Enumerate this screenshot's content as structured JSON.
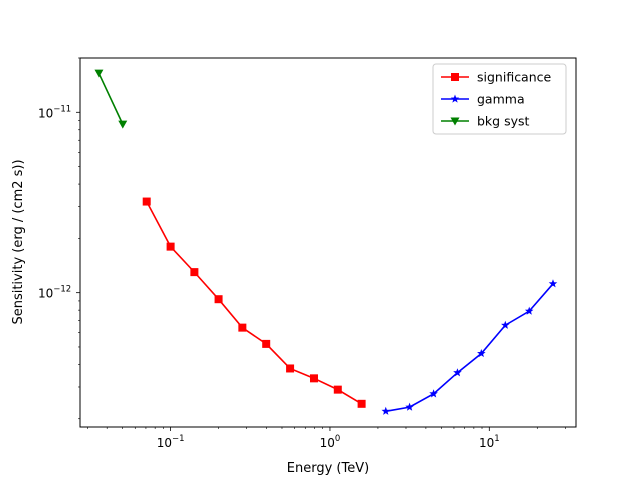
{
  "chart_data": {
    "type": "line",
    "title": "",
    "xlabel": "Energy (TeV)",
    "ylabel": "Sensitivity (erg / (cm2 s))",
    "xscale": "log",
    "yscale": "log",
    "xlim": [
      0.027,
      35
    ],
    "ylim": [
      1.8e-13,
      2e-11
    ],
    "x_ticks": [
      {
        "value": 0.1,
        "base": "10",
        "exp": "−1"
      },
      {
        "value": 1,
        "base": "10",
        "exp": "0"
      },
      {
        "value": 10,
        "base": "10",
        "exp": "1"
      }
    ],
    "y_ticks": [
      {
        "value": 1e-12,
        "base": "10",
        "exp": "−12"
      },
      {
        "value": 1e-11,
        "base": "10",
        "exp": "−11"
      }
    ],
    "grid": false,
    "legend": "top-right",
    "series": [
      {
        "name": "significance",
        "color": "#ff0000",
        "marker": "square",
        "x": [
          0.0708,
          0.1,
          0.141,
          0.2,
          0.282,
          0.398,
          0.562,
          0.794,
          1.12,
          1.58
        ],
        "y": [
          3.2e-12,
          1.8e-12,
          1.3e-12,
          9.2e-13,
          6.4e-13,
          5.2e-13,
          3.8e-13,
          3.35e-13,
          2.9e-13,
          2.42e-13
        ]
      },
      {
        "name": "gamma",
        "color": "#0000ff",
        "marker": "star",
        "x": [
          2.24,
          3.16,
          4.47,
          6.31,
          8.91,
          12.6,
          17.8,
          25.1
        ],
        "y": [
          2.2e-13,
          2.32e-13,
          2.75e-13,
          3.6e-13,
          4.6e-13,
          6.6e-13,
          7.9e-13,
          1.12e-12
        ]
      },
      {
        "name": "bkg syst",
        "color": "#008000",
        "marker": "triangle-down",
        "x": [
          0.0355,
          0.0501
        ],
        "y": [
          1.65e-11,
          8.6e-12
        ]
      }
    ]
  }
}
